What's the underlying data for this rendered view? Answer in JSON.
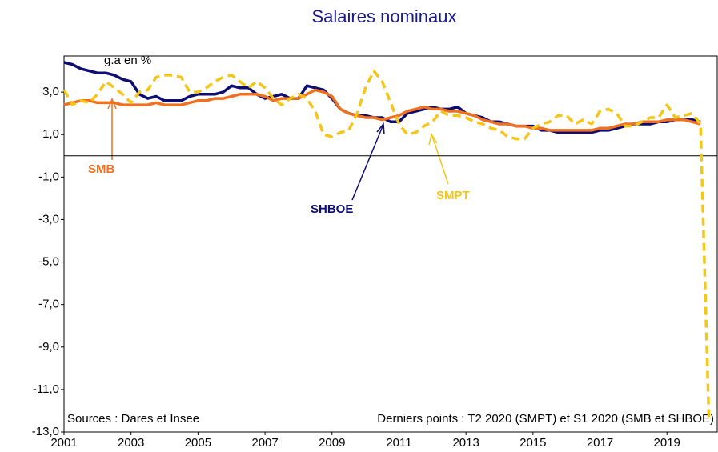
{
  "chart_data": {
    "type": "line",
    "title": "Salaires nominaux",
    "unit_label": "g.a en %",
    "x": [
      2001,
      2001.25,
      2001.5,
      2001.75,
      2002,
      2002.25,
      2002.5,
      2002.75,
      2003,
      2003.25,
      2003.5,
      2003.75,
      2004,
      2004.25,
      2004.5,
      2004.75,
      2005,
      2005.25,
      2005.5,
      2005.75,
      2006,
      2006.25,
      2006.5,
      2006.75,
      2007,
      2007.25,
      2007.5,
      2007.75,
      2008,
      2008.25,
      2008.5,
      2008.75,
      2009,
      2009.25,
      2009.5,
      2009.75,
      2010,
      2010.25,
      2010.5,
      2010.75,
      2011,
      2011.25,
      2011.5,
      2011.75,
      2012,
      2012.25,
      2012.5,
      2012.75,
      2013,
      2013.25,
      2013.5,
      2013.75,
      2014,
      2014.25,
      2014.5,
      2014.75,
      2015,
      2015.25,
      2015.5,
      2015.75,
      2016,
      2016.25,
      2016.5,
      2016.75,
      2017,
      2017.25,
      2017.5,
      2017.75,
      2018,
      2018.25,
      2018.5,
      2018.75,
      2019,
      2019.25,
      2019.5,
      2019.75,
      2020,
      2020.25
    ],
    "series": [
      {
        "name": "SHBOE",
        "color": "#0d0d73",
        "dashed": false,
        "values": [
          4.4,
          4.3,
          4.1,
          4.0,
          3.9,
          3.9,
          3.8,
          3.6,
          3.5,
          2.9,
          2.7,
          2.8,
          2.6,
          2.6,
          2.6,
          2.8,
          2.9,
          2.9,
          2.9,
          3.0,
          3.3,
          3.2,
          3.2,
          2.9,
          2.7,
          2.8,
          2.9,
          2.7,
          2.7,
          3.3,
          3.2,
          3.1,
          2.7,
          2.2,
          2.0,
          1.9,
          1.9,
          1.8,
          1.8,
          1.6,
          1.6,
          2.0,
          2.1,
          2.2,
          2.3,
          2.2,
          2.2,
          2.3,
          2.0,
          1.9,
          1.8,
          1.6,
          1.6,
          1.5,
          1.4,
          1.4,
          1.4,
          1.2,
          1.2,
          1.1,
          1.1,
          1.1,
          1.1,
          1.1,
          1.2,
          1.2,
          1.3,
          1.4,
          1.5,
          1.5,
          1.5,
          1.6,
          1.6,
          1.7,
          1.7,
          1.7,
          1.6,
          null
        ]
      },
      {
        "name": "SMB",
        "color": "#f07020",
        "dashed": false,
        "values": [
          2.4,
          2.5,
          2.6,
          2.6,
          2.5,
          2.5,
          2.5,
          2.4,
          2.4,
          2.4,
          2.4,
          2.5,
          2.4,
          2.4,
          2.4,
          2.5,
          2.6,
          2.6,
          2.7,
          2.7,
          2.8,
          2.9,
          2.9,
          2.9,
          2.8,
          2.6,
          2.7,
          2.7,
          2.7,
          2.9,
          3.1,
          3.0,
          2.8,
          2.2,
          2.0,
          1.9,
          1.8,
          1.8,
          1.7,
          1.8,
          1.9,
          2.1,
          2.2,
          2.3,
          2.2,
          2.2,
          2.1,
          2.1,
          2.0,
          1.9,
          1.7,
          1.6,
          1.5,
          1.5,
          1.4,
          1.4,
          1.3,
          1.3,
          1.2,
          1.2,
          1.2,
          1.2,
          1.2,
          1.2,
          1.3,
          1.3,
          1.4,
          1.5,
          1.5,
          1.6,
          1.6,
          1.6,
          1.7,
          1.7,
          1.7,
          1.6,
          1.5,
          null
        ]
      },
      {
        "name": "SMPT",
        "color": "#f5c518",
        "dashed": true,
        "values": [
          3.1,
          2.4,
          2.6,
          2.5,
          2.9,
          3.5,
          3.2,
          2.9,
          2.5,
          3.0,
          3.1,
          3.7,
          3.8,
          3.8,
          3.7,
          3.0,
          3.0,
          3.2,
          3.5,
          3.7,
          3.8,
          3.5,
          3.2,
          3.5,
          3.2,
          2.7,
          2.4,
          2.7,
          2.9,
          2.7,
          2.1,
          1.0,
          0.9,
          1.1,
          1.2,
          2.0,
          3.2,
          4.0,
          3.5,
          2.5,
          1.5,
          1.0,
          1.1,
          1.4,
          1.6,
          2.1,
          1.9,
          1.9,
          1.8,
          1.6,
          1.5,
          1.3,
          1.2,
          0.9,
          0.8,
          0.8,
          1.3,
          1.5,
          1.6,
          1.9,
          1.9,
          1.5,
          1.7,
          1.5,
          2.1,
          2.2,
          2.0,
          1.4,
          1.4,
          1.6,
          1.8,
          1.8,
          2.4,
          1.8,
          1.9,
          2.0,
          1.5,
          -12.3
        ]
      }
    ],
    "xlim": [
      2001,
      2020.5
    ],
    "xticks": [
      2001,
      2003,
      2005,
      2007,
      2009,
      2011,
      2013,
      2015,
      2017,
      2019
    ],
    "ylim": [
      -13,
      4.7
    ],
    "yticks": [
      {
        "value": -13,
        "label": "-13,0"
      },
      {
        "value": -11,
        "label": "-11,0"
      },
      {
        "value": -9,
        "label": "-9,0"
      },
      {
        "value": -7,
        "label": "-7,0"
      },
      {
        "value": -5,
        "label": "-5,0"
      },
      {
        "value": -3,
        "label": "-3,0"
      },
      {
        "value": -1,
        "label": "-1,0"
      },
      {
        "value": 1,
        "label": "1,0"
      },
      {
        "value": 3,
        "label": "3,0"
      }
    ],
    "zero_line": 0,
    "source": "Sources : Dares et Insee",
    "note": "Derniers points : T2 2020 (SMPT) et S1 2020 (SMB et SHBOE)"
  }
}
